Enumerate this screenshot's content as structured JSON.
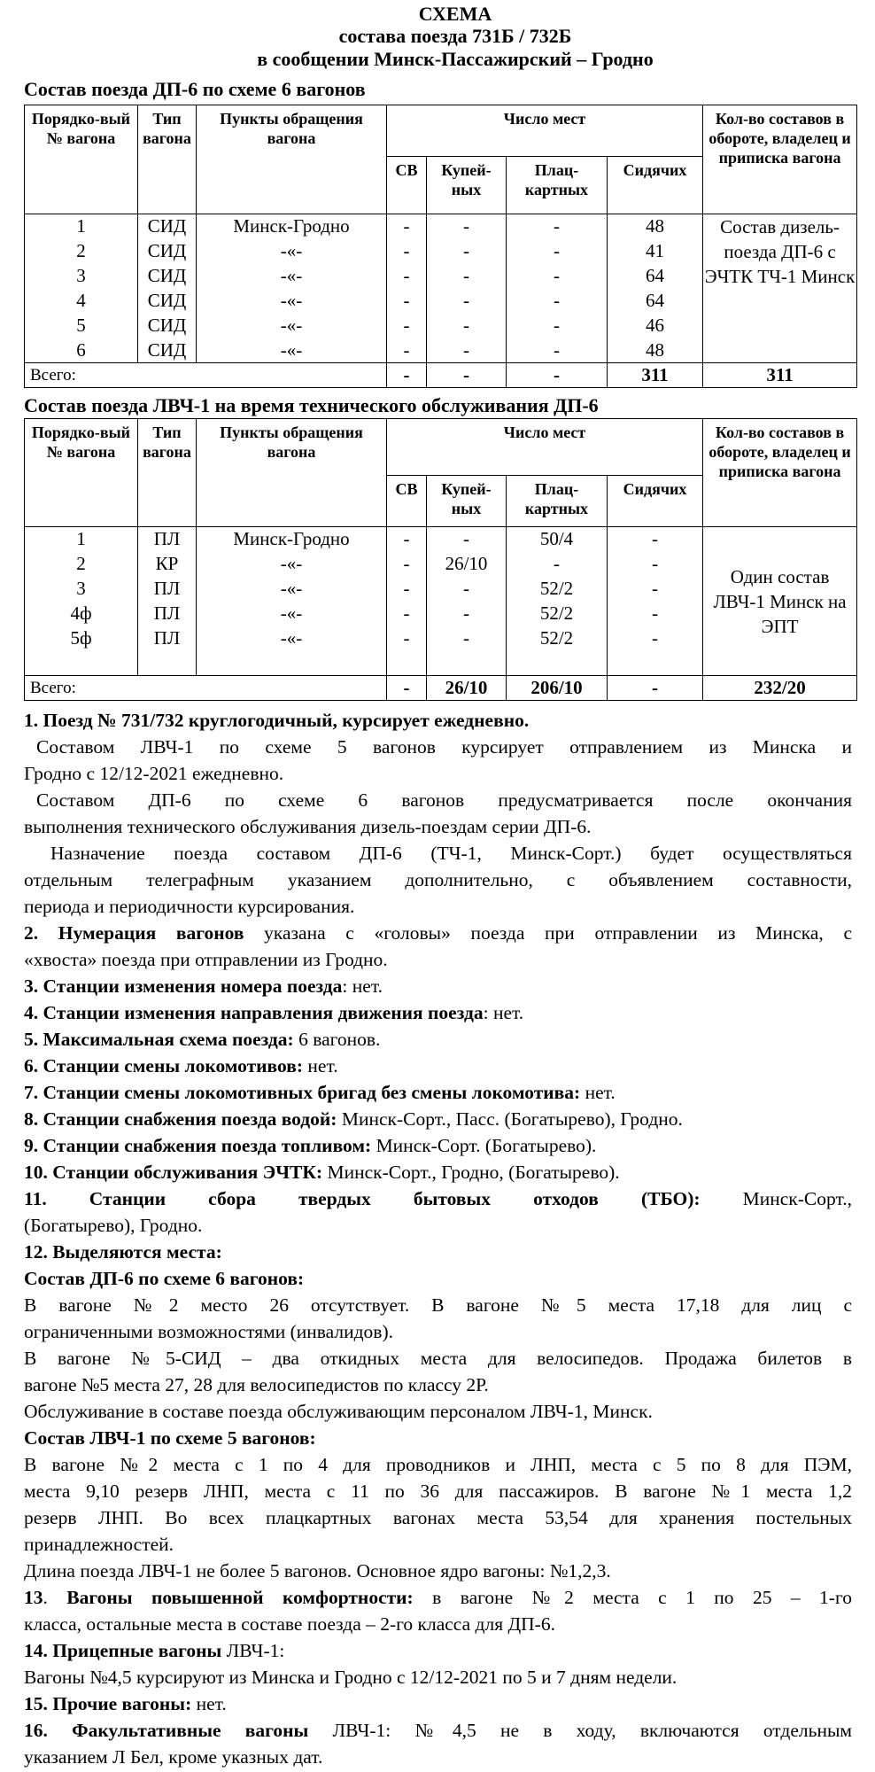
{
  "header": {
    "title": "СХЕМА",
    "subtitle": "состава поезда  731Б / 732Б",
    "route": "в сообщении Минск-Пассажирский – Гродно"
  },
  "table_headers": {
    "num": "Порядко-вый № вагона",
    "type": "Тип вагона",
    "points": "Пункты обращения вагона",
    "seats": "Число  мест",
    "sv": "СВ",
    "kupe": "Купей-ных",
    "plats": "Плац-картных",
    "sid": "Сидячих",
    "owner": "Кол-во составов в обороте, владелец и приписка вагона",
    "total_label": "Всего:"
  },
  "tables": [
    {
      "heading": "Состав поезда ДП-6 по схеме 6 вагонов",
      "rows": [
        [
          "1",
          "СИД",
          "Минск-Гродно",
          "-",
          "-",
          "-",
          "48"
        ],
        [
          "2",
          "СИД",
          "-«-",
          "-",
          "-",
          "-",
          "41"
        ],
        [
          "3",
          "СИД",
          "-«-",
          "-",
          "-",
          "-",
          "64"
        ],
        [
          "4",
          "СИД",
          "-«-",
          "-",
          "-",
          "-",
          "64"
        ],
        [
          "5",
          "СИД",
          "-«-",
          "-",
          "-",
          "-",
          "46"
        ],
        [
          "6",
          "СИД",
          "-«-",
          "-",
          "-",
          "-",
          "48"
        ]
      ],
      "owner": "Состав дизель-поезда ДП-6 с ЭЧТК ТЧ-1 Минск",
      "totals": [
        "-",
        "-",
        "-",
        "311",
        "311"
      ]
    },
    {
      "heading": "Состав поезда ЛВЧ-1 на время технического обслуживания ДП-6",
      "rows": [
        [
          "1",
          "ПЛ",
          "Минск-Гродно",
          "-",
          "-",
          "50/4",
          "-"
        ],
        [
          "2",
          "КР",
          "-«-",
          "-",
          "26/10",
          "-",
          "-"
        ],
        [
          "3",
          "ПЛ",
          "-«-",
          "-",
          "-",
          "52/2",
          "-"
        ],
        [
          "4ф",
          "ПЛ",
          "-«-",
          "-",
          "-",
          "52/2",
          "-"
        ],
        [
          "5ф",
          "ПЛ",
          "-«-",
          "-",
          "-",
          "52/2",
          "-"
        ]
      ],
      "owner": "Один состав ЛВЧ-1 Минск на ЭПТ",
      "totals": [
        "-",
        "26/10",
        "206/10",
        "-",
        "232/20"
      ]
    }
  ],
  "notes": [
    {
      "lines": [
        [
          {
            "t": "1. Поезд № 731/732  круглогодичный, курсирует ежедневно.",
            "b": true
          }
        ]
      ]
    },
    {
      "indent": 1,
      "lines": [
        [
          {
            "t": "Составом ЛВЧ-1 по схеме 5 вагонов курсирует отправлением из Минска и"
          }
        ],
        [
          {
            "t": "Гродно с 12/12-2021 ежедневно."
          }
        ]
      ]
    },
    {
      "indent": 1,
      "lines": [
        [
          {
            "t": "Составом ДП-6 по схеме 6 вагонов предусматривается после окончания"
          }
        ],
        [
          {
            "t": "выполнения технического обслуживания дизель-поездам серии ДП-6."
          }
        ]
      ]
    },
    {
      "indent": 2,
      "lines": [
        [
          {
            "t": "Назначение поезда составом ДП-6 (ТЧ-1, Минск-Сорт.) будет осуществляться"
          }
        ],
        [
          {
            "t": "отдельным телеграфным указанием дополнительно, с объявлением составности,"
          }
        ],
        [
          {
            "t": "периода и периодичности курсирования."
          }
        ]
      ]
    },
    {
      "lines": [
        [
          {
            "t": "2. Нумерация вагонов",
            "b": true
          },
          {
            "t": " указана с «головы» поезда при отправлении из Минска, с"
          }
        ],
        [
          {
            "t": "«хвоста» поезда при отправлении из Гродно."
          }
        ]
      ]
    },
    {
      "lines": [
        [
          {
            "t": "3. Станции изменения номера поезда",
            "b": true
          },
          {
            "t": ": нет."
          }
        ]
      ]
    },
    {
      "lines": [
        [
          {
            "t": "4. Станции изменения направления движения поезда",
            "b": true
          },
          {
            "t": ": нет."
          }
        ]
      ]
    },
    {
      "lines": [
        [
          {
            "t": "5. Максимальная схема поезда:",
            "b": true
          },
          {
            "t": " 6 вагонов."
          }
        ]
      ]
    },
    {
      "lines": [
        [
          {
            "t": "6. Станции смены локомотивов:",
            "b": true
          },
          {
            "t": " нет."
          }
        ]
      ]
    },
    {
      "lines": [
        [
          {
            "t": "7. Станции смены локомотивных бригад без смены локомотива:",
            "b": true
          },
          {
            "t": " нет."
          }
        ]
      ]
    },
    {
      "lines": [
        [
          {
            "t": "8. Станции снабжения поезда водой:",
            "b": true
          },
          {
            "t": " Минск-Сорт., Пасс. (Богатырево), Гродно."
          }
        ]
      ]
    },
    {
      "lines": [
        [
          {
            "t": "9. Станции снабжения поезда топливом:",
            "b": true
          },
          {
            "t": " Минск-Сорт. (Богатырево)."
          }
        ]
      ]
    },
    {
      "lines": [
        [
          {
            "t": "10. Станции обслуживания ЭЧТК:",
            "b": true
          },
          {
            "t": " Минск-Сорт., Гродно, (Богатырево)."
          }
        ]
      ]
    },
    {
      "lines": [
        [
          {
            "t": "11. Станции сбора твердых бытовых отходов (ТБО):",
            "b": true
          },
          {
            "t": " Минск-Сорт.,"
          }
        ],
        [
          {
            "t": "(Богатырево), Гродно."
          }
        ]
      ]
    },
    {
      "lines": [
        [
          {
            "t": "12. Выделяются места:",
            "b": true
          }
        ]
      ]
    },
    {
      "lines": [
        [
          {
            "t": "Состав ДП-6 по схеме 6 вагонов:",
            "b": true
          }
        ]
      ]
    },
    {
      "lines": [
        [
          {
            "t": "В вагоне №2 место 26 отсутствует. В вагоне №5 места 17,18 для лиц с"
          }
        ],
        [
          {
            "t": "ограниченными возможностями (инвалидов)."
          }
        ]
      ]
    },
    {
      "lines": [
        [
          {
            "t": "В вагоне №5-СИД – два откидных места для велосипедов. Продажа билетов в"
          }
        ],
        [
          {
            "t": "вагоне №5 места 27, 28 для велосипедистов по классу 2Р."
          }
        ]
      ]
    },
    {
      "lines": [
        [
          {
            "t": "Обслуживание в составе поезда обслуживающим персоналом ЛВЧ-1, Минск."
          }
        ]
      ]
    },
    {
      "lines": [
        [
          {
            "t": "Состав ЛВЧ-1 по схеме 5 вагонов:",
            "b": true
          }
        ]
      ]
    },
    {
      "lines": [
        [
          {
            "t": "В вагоне №2 места с 1 по 4 для проводников и ЛНП, места с 5 по 8 для ПЭМ,"
          }
        ],
        [
          {
            "t": "места 9,10 резерв ЛНП, места с 11 по 36 для пассажиров. В вагоне №1 места 1,2"
          }
        ],
        [
          {
            "t": "резерв ЛНП. Во всех плацкартных вагонах места 53,54 для хранения постельных"
          }
        ],
        [
          {
            "t": "принадлежностей."
          }
        ]
      ]
    },
    {
      "lines": [
        [
          {
            "t": "Длина поезда ЛВЧ-1 не более 5 вагонов. Основное ядро вагоны: №1,2,3."
          }
        ]
      ]
    },
    {
      "lines": [
        [
          {
            "t": "13",
            "b": true
          },
          {
            "t": ". "
          },
          {
            "t": "Вагоны повышенной комфортности:",
            "b": true
          },
          {
            "t": " в вагоне №2 места с 1 по 25 – 1-го"
          }
        ],
        [
          {
            "t": "класса, остальные места в составе поезда – 2-го класса для ДП-6."
          }
        ]
      ]
    },
    {
      "lines": [
        [
          {
            "t": "14. Прицепные вагоны",
            "b": true
          },
          {
            "t": " ЛВЧ-1:"
          }
        ]
      ]
    },
    {
      "lines": [
        [
          {
            "t": "Вагоны №4,5 курсируют из Минска и Гродно с 12/12-2021 по 5 и 7 дням недели."
          }
        ]
      ]
    },
    {
      "lines": [
        [
          {
            "t": "15. Прочие вагоны:",
            "b": true
          },
          {
            "t": " нет."
          }
        ]
      ]
    },
    {
      "lines": [
        [
          {
            "t": "16. Факультативные вагоны",
            "b": true
          },
          {
            "t": " ЛВЧ-1: №4,5 не в ходу, включаются отдельным"
          }
        ],
        [
          {
            "t": "указанием Л Бел, кроме указных дат."
          }
        ]
      ]
    }
  ]
}
